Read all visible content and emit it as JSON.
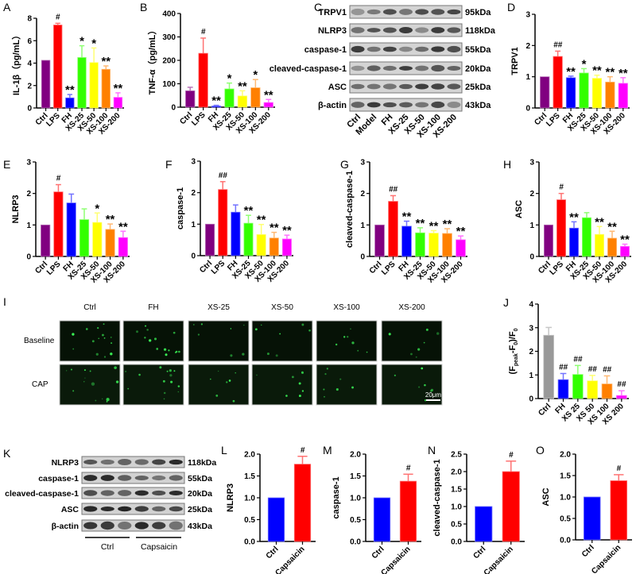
{
  "palette": {
    "Ctrl": "#800080",
    "LPS": "#ff0000",
    "FH": "#0000ff",
    "XS-25": "#33ff00",
    "XS-50": "#ffff00",
    "XS-100": "#ff8000",
    "XS-200": "#ff00ff",
    "gray": "#999999"
  },
  "chart_data": [
    {
      "id": "A",
      "type": "bar",
      "panel_label": "A",
      "ylabel": "IL-1β（pg/mL）",
      "ylim": [
        0,
        8
      ],
      "yticks": [
        "0",
        "2",
        "4",
        "6",
        "8"
      ],
      "categories": [
        "Ctrl",
        "LPS",
        "FH",
        "XS-25",
        "XS-50",
        "XS-100",
        "XS-200"
      ],
      "values": [
        4.25,
        7.4,
        0.9,
        4.5,
        4.05,
        3.45,
        0.95
      ],
      "errors": [
        0,
        0.15,
        0.3,
        1.05,
        1.3,
        0.3,
        0.4
      ],
      "significance": [
        "",
        "#",
        "**",
        "*",
        "*",
        "**",
        "**"
      ],
      "colors": [
        "#800080",
        "#ff0000",
        "#0000ff",
        "#33ff00",
        "#ffff00",
        "#ff8000",
        "#ff00ff"
      ]
    },
    {
      "id": "B",
      "type": "bar",
      "panel_label": "B",
      "ylabel": "TNF-α（pg/mL）",
      "ylim": [
        0,
        400
      ],
      "yticks": [
        "0",
        "100",
        "200",
        "300",
        "400"
      ],
      "categories": [
        "Ctrl",
        "LPS",
        "FH",
        "XS-25",
        "XS-50",
        "XS-100",
        "XS-200"
      ],
      "values": [
        70,
        230,
        5,
        78,
        48,
        83,
        20
      ],
      "errors": [
        15,
        65,
        3,
        25,
        22,
        35,
        13
      ],
      "significance": [
        "",
        "#",
        "**",
        "*",
        "**",
        "*",
        "**"
      ],
      "colors": [
        "#800080",
        "#ff0000",
        "#0000ff",
        "#33ff00",
        "#ffff00",
        "#ff8000",
        "#ff00ff"
      ]
    },
    {
      "id": "D",
      "type": "bar",
      "panel_label": "D",
      "ylabel": "TRPV1",
      "ylim": [
        0,
        3
      ],
      "yticks": [
        "0",
        "1",
        "2",
        "3"
      ],
      "categories": [
        "Ctrl",
        "LPS",
        "FH",
        "XS-25",
        "XS-50",
        "XS-100",
        "XS-200"
      ],
      "values": [
        1,
        1.65,
        0.97,
        1.12,
        0.95,
        0.83,
        0.79
      ],
      "errors": [
        0,
        0.17,
        0.05,
        0.14,
        0.1,
        0.17,
        0.18
      ],
      "significance": [
        "",
        "##",
        "**",
        "*",
        "**",
        "**",
        "**"
      ],
      "colors": [
        "#800080",
        "#ff0000",
        "#0000ff",
        "#33ff00",
        "#ffff00",
        "#ff8000",
        "#ff00ff"
      ]
    },
    {
      "id": "E",
      "type": "bar",
      "panel_label": "E",
      "ylabel": "NLRP3",
      "ylim": [
        0,
        3
      ],
      "yticks": [
        "0",
        "1",
        "2",
        "3"
      ],
      "categories": [
        "Ctrl",
        "LPS",
        "FH",
        "XS-25",
        "XS-50",
        "XS-100",
        "XS-200"
      ],
      "values": [
        1,
        2.05,
        1.7,
        1.17,
        1.08,
        0.86,
        0.6
      ],
      "errors": [
        0,
        0.23,
        0.28,
        0.34,
        0.3,
        0.17,
        0.2
      ],
      "significance": [
        "",
        "#",
        "",
        "",
        "*",
        "**",
        "**"
      ],
      "colors": [
        "#800080",
        "#ff0000",
        "#0000ff",
        "#33ff00",
        "#ffff00",
        "#ff8000",
        "#ff00ff"
      ]
    },
    {
      "id": "F",
      "type": "bar",
      "panel_label": "F",
      "ylabel": "caspase-1",
      "ylim": [
        0,
        3
      ],
      "yticks": [
        "0",
        "1",
        "2",
        "3"
      ],
      "categories": [
        "Ctrl",
        "LPS",
        "FH",
        "XS-25",
        "XS-50",
        "XS-100",
        "XS-200"
      ],
      "values": [
        1,
        2.1,
        1.38,
        1.03,
        0.67,
        0.56,
        0.53
      ],
      "errors": [
        0,
        0.25,
        0.23,
        0.25,
        0.32,
        0.18,
        0.12
      ],
      "significance": [
        "",
        "##",
        "",
        "**",
        "**",
        "**",
        "**"
      ],
      "colors": [
        "#800080",
        "#ff0000",
        "#0000ff",
        "#33ff00",
        "#ffff00",
        "#ff8000",
        "#ff00ff"
      ]
    },
    {
      "id": "G",
      "type": "bar",
      "panel_label": "G",
      "ylabel": "cleaved-caspase-1",
      "ylim": [
        0,
        3
      ],
      "yticks": [
        "0",
        "1",
        "2",
        "3"
      ],
      "categories": [
        "Ctrl",
        "LPS",
        "FH",
        "XS-25",
        "XS-50",
        "XS-100",
        "XS-200"
      ],
      "values": [
        1,
        1.75,
        0.96,
        0.75,
        0.74,
        0.73,
        0.53
      ],
      "errors": [
        0,
        0.18,
        0.16,
        0.16,
        0.08,
        0.15,
        0.12
      ],
      "significance": [
        "",
        "##",
        "**",
        "**",
        "**",
        "**",
        "**"
      ],
      "colors": [
        "#800080",
        "#ff0000",
        "#0000ff",
        "#33ff00",
        "#ffff00",
        "#ff8000",
        "#ff00ff"
      ]
    },
    {
      "id": "H",
      "type": "bar",
      "panel_label": "H",
      "ylabel": "ASC",
      "ylim": [
        0,
        3
      ],
      "yticks": [
        "0",
        "1",
        "2",
        "3"
      ],
      "categories": [
        "Ctrl",
        "LPS",
        "FH",
        "XS-25",
        "XS-50",
        "XS-100",
        "XS-200"
      ],
      "values": [
        1,
        1.8,
        0.9,
        1.23,
        0.7,
        0.58,
        0.32
      ],
      "errors": [
        0,
        0.2,
        0.2,
        0.16,
        0.25,
        0.22,
        0.07
      ],
      "significance": [
        "",
        "#",
        "**",
        "",
        "**",
        "**",
        "**"
      ],
      "colors": [
        "#800080",
        "#ff0000",
        "#0000ff",
        "#33ff00",
        "#ffff00",
        "#ff8000",
        "#ff00ff"
      ]
    },
    {
      "id": "J",
      "type": "bar",
      "panel_label": "J",
      "ylabel": "(F_peak-F_0)/F_0",
      "ylabel_parts": [
        "(F",
        "peak",
        "-F",
        "0",
        ")/F",
        "0"
      ],
      "ylim": [
        0,
        4
      ],
      "yticks": [
        "0",
        "1",
        "2",
        "3",
        "4"
      ],
      "categories": [
        "Ctrl",
        "FH",
        "XS 25",
        "XS 50",
        "XS 100",
        "XS 200"
      ],
      "values": [
        2.68,
        0.8,
        1.02,
        0.75,
        0.62,
        0.13
      ],
      "errors": [
        0.33,
        0.26,
        0.38,
        0.23,
        0.34,
        0.2
      ],
      "significance": [
        "",
        "##",
        "##",
        "##",
        "##",
        "##"
      ],
      "colors": [
        "#999999",
        "#0000ff",
        "#33ff00",
        "#ffff00",
        "#ff8000",
        "#ff00ff"
      ]
    },
    {
      "id": "L",
      "type": "bar",
      "panel_label": "L",
      "ylabel": "NLRP3",
      "ylim": [
        0,
        2
      ],
      "yticks": [
        "0.0",
        "0.5",
        "1.0",
        "1.5",
        "2.0"
      ],
      "categories": [
        "Ctrl",
        "Capsaicin"
      ],
      "values": [
        1,
        1.77
      ],
      "errors": [
        0,
        0.18
      ],
      "significance": [
        "",
        "#"
      ],
      "colors": [
        "#0000ff",
        "#ff0000"
      ]
    },
    {
      "id": "M",
      "type": "bar",
      "panel_label": "M",
      "ylabel": "caspase-1",
      "ylim": [
        0,
        2
      ],
      "yticks": [
        "0.0",
        "0.5",
        "1.0",
        "1.5",
        "2.0"
      ],
      "categories": [
        "Ctrl",
        "Capsaicin"
      ],
      "values": [
        1,
        1.38
      ],
      "errors": [
        0,
        0.16
      ],
      "significance": [
        "",
        "#"
      ],
      "colors": [
        "#0000ff",
        "#ff0000"
      ]
    },
    {
      "id": "N",
      "type": "bar",
      "panel_label": "N",
      "ylabel": "cleaved-caspase-1",
      "ylim": [
        0,
        2.5
      ],
      "yticks": [
        "0.0",
        "0.5",
        "1.0",
        "1.5",
        "2.0",
        "2.5"
      ],
      "categories": [
        "Ctrl",
        "Capsaicin"
      ],
      "values": [
        1,
        2.0
      ],
      "errors": [
        0,
        0.3
      ],
      "significance": [
        "",
        "#"
      ],
      "colors": [
        "#0000ff",
        "#ff0000"
      ]
    },
    {
      "id": "O",
      "type": "bar",
      "panel_label": "O",
      "ylabel": "ASC",
      "ylim": [
        0,
        2
      ],
      "yticks": [
        "0.0",
        "0.5",
        "1.0",
        "1.5",
        "2.0"
      ],
      "categories": [
        "Ctrl",
        "Capsaicin"
      ],
      "values": [
        1,
        1.38
      ],
      "errors": [
        0,
        0.14
      ],
      "significance": [
        "",
        "#"
      ],
      "colors": [
        "#0000ff",
        "#ff0000"
      ]
    }
  ],
  "blot_C": {
    "panel_label": "C",
    "proteins": [
      "TRPV1",
      "NLRP3",
      "caspase-1",
      "cleaved-caspase-1",
      "ASC",
      "β-actin"
    ],
    "sizes": [
      "95kDa",
      "118kDa",
      "55kDa",
      "20kDa",
      "25kDa",
      "43kDa"
    ],
    "lanes": [
      "Ctrl",
      "Model",
      "FH",
      "XS-25",
      "XS-50",
      "XS-100",
      "XS-200"
    ]
  },
  "blot_K": {
    "panel_label": "K",
    "proteins": [
      "NLRP3",
      "caspase-1",
      "cleaved-caspase-1",
      "ASC",
      "β-actin"
    ],
    "sizes": [
      "118kDa",
      "55kDa",
      "20kDa",
      "25kDa",
      "43kDa"
    ],
    "groups": [
      "Ctrl",
      "Capsaicin"
    ]
  },
  "images_I": {
    "panel_label": "I",
    "columns": [
      "Ctrl",
      "FH",
      "XS-25",
      "XS-50",
      "XS-100",
      "XS-200"
    ],
    "rows": [
      "Baseline",
      "CAP"
    ],
    "scale_bar": "20μm"
  }
}
